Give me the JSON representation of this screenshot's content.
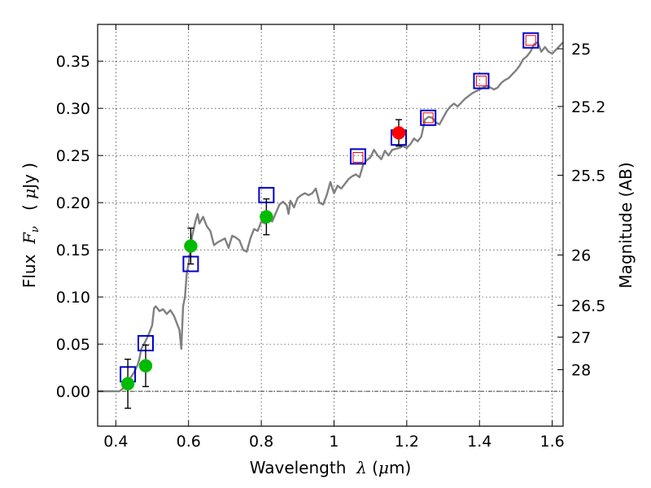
{
  "chart_data": {
    "type": "scatter",
    "title": "",
    "xlabel": "Wavelength",
    "xlabel_symbol": "λ",
    "xlabel_unit_open": " (",
    "xlabel_unit_mu": "μ",
    "xlabel_unit_rest": "m)",
    "ylabel": "Flux",
    "ylabel_symbol": "F",
    "ylabel_sub": "ν",
    "ylabel_unit_open": "( ",
    "ylabel_unit_mu": "μ",
    "ylabel_unit_rest": "Jy )",
    "y2label": "Magnitude (AB)",
    "xlim": [
      0.35,
      1.63
    ],
    "ylim": [
      -0.037,
      0.389
    ],
    "grid": true,
    "x_ticks": [
      0.4,
      0.6,
      0.8,
      1.0,
      1.2,
      1.4,
      1.6
    ],
    "x_tick_labels": [
      "0.4",
      "0.6",
      "0.8",
      "1",
      "1.2",
      "1.4",
      "1.6"
    ],
    "y_ticks": [
      0.0,
      0.05,
      0.1,
      0.15,
      0.2,
      0.25,
      0.3,
      0.35
    ],
    "y_tick_labels": [
      "0.00",
      "0.05",
      "0.10",
      "0.15",
      "0.20",
      "0.25",
      "0.30",
      "0.35"
    ],
    "y2_ticks": [
      {
        "flux": 0.3631,
        "label": "25"
      },
      {
        "flux": 0.302,
        "label": "25.2"
      },
      {
        "flux": 0.2291,
        "label": "25.5"
      },
      {
        "flux": 0.1445,
        "label": "26"
      },
      {
        "flux": 0.0912,
        "label": "26.5"
      },
      {
        "flux": 0.0575,
        "label": "27"
      },
      {
        "flux": 0.0229,
        "label": "28"
      }
    ],
    "series": [
      {
        "kind": "model-spectrum",
        "color": "#808080",
        "x": [
          0.35,
          0.41,
          0.42,
          0.43,
          0.44,
          0.45,
          0.46,
          0.465,
          0.47,
          0.48,
          0.49,
          0.5,
          0.505,
          0.51,
          0.52,
          0.53,
          0.54,
          0.55,
          0.56,
          0.57,
          0.575,
          0.58,
          0.585,
          0.59,
          0.595,
          0.6,
          0.605,
          0.61,
          0.62,
          0.625,
          0.63,
          0.64,
          0.65,
          0.66,
          0.67,
          0.68,
          0.69,
          0.7,
          0.71,
          0.72,
          0.73,
          0.74,
          0.75,
          0.76,
          0.77,
          0.78,
          0.79,
          0.8,
          0.81,
          0.82,
          0.83,
          0.84,
          0.85,
          0.86,
          0.87,
          0.875,
          0.88,
          0.89,
          0.9,
          0.91,
          0.92,
          0.93,
          0.94,
          0.95,
          0.96,
          0.97,
          0.98,
          0.99,
          1.0,
          1.01,
          1.02,
          1.03,
          1.04,
          1.05,
          1.06,
          1.07,
          1.08,
          1.09,
          1.1,
          1.11,
          1.12,
          1.13,
          1.14,
          1.15,
          1.16,
          1.17,
          1.18,
          1.19,
          1.2,
          1.21,
          1.22,
          1.23,
          1.24,
          1.25,
          1.26,
          1.27,
          1.28,
          1.29,
          1.3,
          1.31,
          1.32,
          1.33,
          1.34,
          1.35,
          1.36,
          1.37,
          1.38,
          1.39,
          1.4,
          1.41,
          1.42,
          1.43,
          1.44,
          1.45,
          1.46,
          1.47,
          1.48,
          1.49,
          1.5,
          1.51,
          1.52,
          1.53,
          1.54,
          1.55,
          1.56,
          1.57,
          1.58,
          1.59,
          1.6,
          1.61,
          1.62,
          1.63
        ],
        "y": [
          0.0,
          0.0,
          0.003,
          0.008,
          0.014,
          0.02,
          0.028,
          0.035,
          0.045,
          0.052,
          0.06,
          0.07,
          0.088,
          0.09,
          0.085,
          0.087,
          0.082,
          0.086,
          0.08,
          0.07,
          0.065,
          0.045,
          0.09,
          0.1,
          0.125,
          0.135,
          0.15,
          0.165,
          0.182,
          0.188,
          0.178,
          0.185,
          0.175,
          0.17,
          0.155,
          0.158,
          0.16,
          0.162,
          0.152,
          0.165,
          0.163,
          0.16,
          0.15,
          0.148,
          0.162,
          0.172,
          0.17,
          0.18,
          0.178,
          0.183,
          0.18,
          0.189,
          0.198,
          0.201,
          0.197,
          0.188,
          0.202,
          0.195,
          0.205,
          0.208,
          0.21,
          0.208,
          0.21,
          0.215,
          0.2,
          0.198,
          0.208,
          0.222,
          0.21,
          0.218,
          0.215,
          0.22,
          0.225,
          0.228,
          0.23,
          0.227,
          0.24,
          0.245,
          0.248,
          0.256,
          0.25,
          0.246,
          0.255,
          0.25,
          0.256,
          0.257,
          0.258,
          0.26,
          0.258,
          0.262,
          0.268,
          0.265,
          0.27,
          0.288,
          0.291,
          0.29,
          0.285,
          0.283,
          0.29,
          0.297,
          0.302,
          0.305,
          0.302,
          0.306,
          0.31,
          0.313,
          0.316,
          0.318,
          0.32,
          0.322,
          0.324,
          0.322,
          0.32,
          0.322,
          0.327,
          0.33,
          0.332,
          0.336,
          0.34,
          0.345,
          0.352,
          0.355,
          0.36,
          0.368,
          0.37,
          0.36,
          0.365,
          0.36,
          0.358,
          0.362,
          0.366,
          0.37
        ]
      },
      {
        "kind": "model-photometry",
        "marker": "open-square",
        "color": "#0000cc",
        "x": [
          0.433,
          0.482,
          0.606,
          0.814,
          1.066,
          1.178,
          1.259,
          1.405,
          1.541
        ],
        "y": [
          0.018,
          0.051,
          0.135,
          0.208,
          0.249,
          0.269,
          0.29,
          0.329,
          0.372
        ]
      },
      {
        "kind": "upper-estimate",
        "marker": "open-square",
        "color": "#ff0000",
        "x": [
          1.066,
          1.259,
          1.405,
          1.541
        ],
        "y": [
          0.248,
          0.29,
          0.329,
          0.372
        ]
      },
      {
        "kind": "observed-optical",
        "marker": "filled-circle",
        "color": "#00bb00",
        "x": [
          0.433,
          0.482,
          0.606,
          0.814
        ],
        "y": [
          0.008,
          0.027,
          0.154,
          0.185
        ],
        "yerr": [
          0.026,
          0.022,
          0.019,
          0.019
        ]
      },
      {
        "kind": "observed-nir",
        "marker": "filled-circle",
        "color": "#ff0000",
        "x": [
          1.178
        ],
        "y": [
          0.274
        ],
        "yerr": [
          0.014
        ]
      }
    ]
  }
}
